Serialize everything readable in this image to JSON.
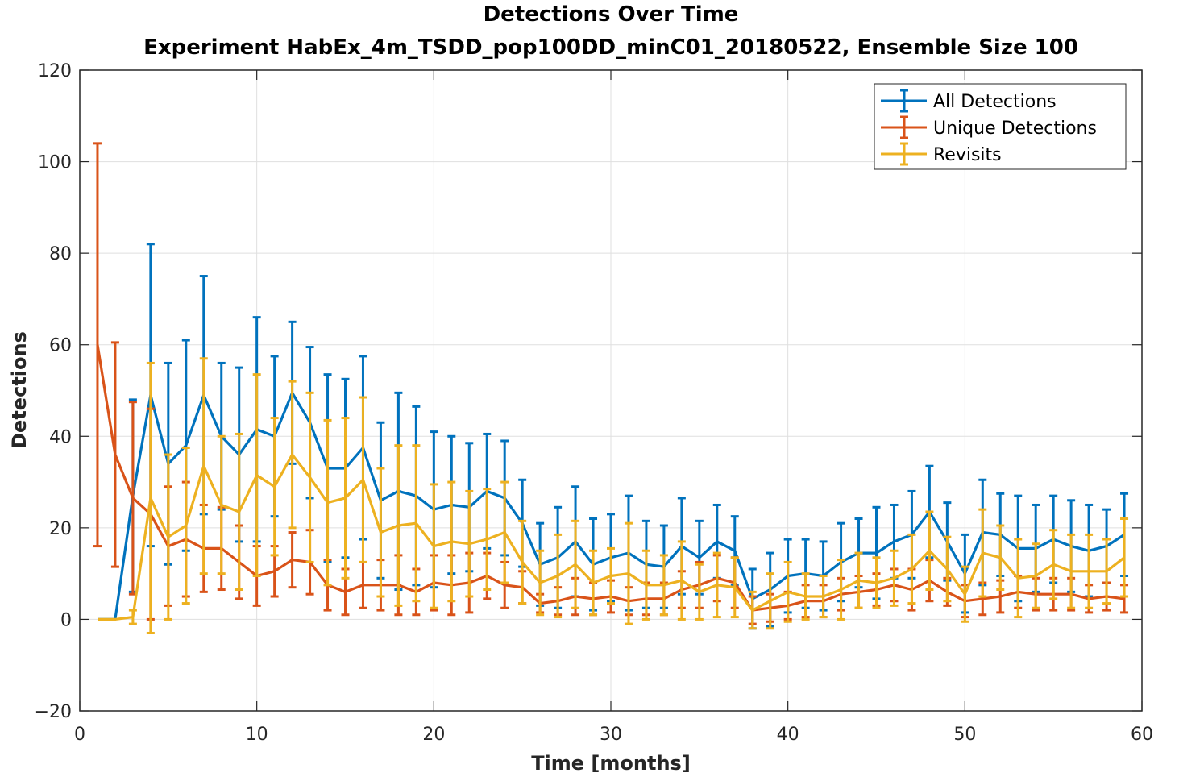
{
  "chart_data": {
    "type": "line",
    "title": "Detections Over Time",
    "subtitle": "Experiment HabEx_4m_TSDD_pop100DD_minC01_20180522, Ensemble Size 100",
    "xlabel": "Time [months]",
    "ylabel": "Detections",
    "xlim": [
      0,
      60
    ],
    "ylim": [
      -20,
      120
    ],
    "xticks": [
      "0",
      "10",
      "20",
      "30",
      "40",
      "50",
      "60"
    ],
    "yticks": [
      "−20",
      "0",
      "20",
      "40",
      "60",
      "80",
      "100",
      "120"
    ],
    "grid": true,
    "legend_position": "top-right",
    "x": [
      1,
      2,
      3,
      4,
      5,
      6,
      7,
      8,
      9,
      10,
      11,
      12,
      13,
      14,
      15,
      16,
      17,
      18,
      19,
      20,
      21,
      22,
      23,
      24,
      25,
      26,
      27,
      28,
      29,
      30,
      31,
      32,
      33,
      34,
      35,
      36,
      37,
      38,
      39,
      40,
      41,
      42,
      43,
      44,
      45,
      46,
      47,
      48,
      49,
      50,
      51,
      52,
      53,
      54,
      55,
      56,
      57,
      58,
      59
    ],
    "series": [
      {
        "name": "All Detections",
        "color": "#0072BD",
        "values": [
          0,
          0,
          27,
          49,
          34,
          38,
          49,
          40,
          36,
          41.5,
          40,
          49.5,
          43,
          33,
          33,
          37.5,
          26,
          28,
          27,
          24,
          25,
          24.5,
          28,
          26.5,
          21,
          12,
          13.5,
          17,
          12,
          13.5,
          14.5,
          12,
          11.5,
          16,
          13.5,
          17,
          15,
          4.5,
          6.5,
          9.5,
          10,
          9.5,
          12.5,
          14.5,
          14.5,
          17,
          18.5,
          23.5,
          17,
          10,
          19,
          18.5,
          15.5,
          15.5,
          17.5,
          16,
          15,
          16,
          18.5
        ],
        "err": [
          0,
          0,
          21,
          33,
          22,
          23,
          26,
          16,
          19,
          24.5,
          17.5,
          15.5,
          16.5,
          20.5,
          19.5,
          20,
          17,
          21.5,
          19.5,
          17,
          15,
          14,
          12.5,
          12.5,
          9.5,
          9,
          11,
          12,
          10,
          9.5,
          12.5,
          9.5,
          9,
          10.5,
          8,
          8,
          7.5,
          6.5,
          8,
          8,
          7.5,
          7.5,
          8.5,
          7.5,
          10,
          8,
          9.5,
          10,
          8.5,
          8.5,
          11.5,
          9,
          11.5,
          9.5,
          9.5,
          10,
          10,
          8,
          9
        ]
      },
      {
        "name": "Unique Detections",
        "color": "#D95319",
        "values": [
          60,
          36,
          26.5,
          23,
          16,
          17.5,
          15.5,
          15.5,
          12.5,
          9.5,
          10.5,
          13,
          12.5,
          7.5,
          6,
          7.5,
          7.5,
          7.5,
          6,
          8,
          7.5,
          8,
          9.5,
          7.5,
          7,
          3.5,
          4,
          5,
          4.5,
          5,
          4,
          4.5,
          4.5,
          6.5,
          7.5,
          9,
          8,
          2,
          2.5,
          3,
          4,
          4,
          5.5,
          6,
          6.5,
          7.5,
          6.5,
          8.5,
          6,
          4,
          4.5,
          5,
          6,
          5.5,
          5.5,
          5.5,
          4.5,
          5,
          4.5
        ],
        "err": [
          44,
          24.5,
          21,
          23,
          13,
          12.5,
          9.5,
          9,
          8,
          6.5,
          5.5,
          6,
          7,
          5.5,
          5,
          5,
          5.5,
          6.5,
          5,
          6,
          6.5,
          6.5,
          5,
          5,
          3.5,
          2,
          3,
          4,
          3.5,
          3.5,
          3,
          3.5,
          3.5,
          4,
          5,
          5,
          5.5,
          3,
          3,
          3,
          3.5,
          3.5,
          3.5,
          3.5,
          3.5,
          3.5,
          4.5,
          4.5,
          3,
          3.5,
          3.5,
          3.5,
          3.5,
          3.5,
          3.5,
          3.5,
          3,
          3,
          3
        ]
      },
      {
        "name": "Revisits",
        "color": "#EDB120",
        "values": [
          0,
          0,
          0.5,
          26.5,
          18,
          20.5,
          33.5,
          25,
          23.5,
          31.5,
          29,
          36,
          31,
          25.5,
          26.5,
          30.5,
          19,
          20.5,
          21,
          16,
          17,
          16.5,
          17.5,
          19,
          12.5,
          8,
          9.5,
          12,
          8,
          9.5,
          10,
          7.5,
          7.5,
          8.5,
          6,
          7.5,
          7,
          2,
          4,
          6,
          5,
          5,
          6.5,
          8.5,
          8,
          9,
          11,
          15,
          11,
          5.5,
          14.5,
          13.5,
          9,
          9.5,
          12,
          10.5,
          10.5,
          10.5,
          13.5
        ],
        "err": [
          0,
          0,
          1.5,
          29.5,
          18,
          17,
          23.5,
          15,
          17,
          22,
          15,
          16,
          18.5,
          18,
          17.5,
          18,
          14,
          17.5,
          17,
          13.5,
          13,
          11.5,
          11,
          11,
          9,
          7,
          9,
          9.5,
          7,
          6,
          11,
          7.5,
          6.5,
          8.5,
          6,
          7,
          6.5,
          4,
          6,
          6.5,
          5,
          4.5,
          6.5,
          6,
          5.5,
          6,
          7.5,
          8.5,
          7,
          6,
          9.5,
          7,
          8.5,
          7,
          7.5,
          8,
          8,
          7,
          8.5
        ]
      }
    ]
  }
}
